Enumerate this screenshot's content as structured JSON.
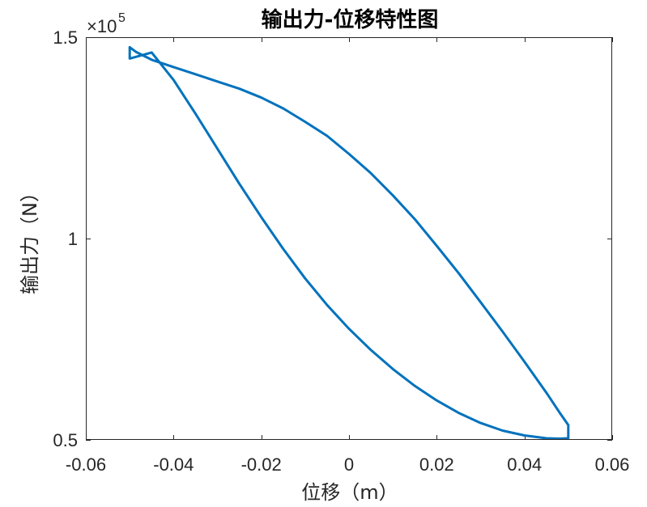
{
  "chart_data": {
    "type": "line",
    "title": "输出力-位移特性图",
    "xlabel": "位移（m）",
    "ylabel": "输出力（N）",
    "xlim": [
      -0.06,
      0.06
    ],
    "ylim": [
      50000,
      150000
    ],
    "x_ticks": [
      -0.06,
      -0.04,
      -0.02,
      0,
      0.02,
      0.04,
      0.06
    ],
    "x_tick_labels": [
      "-0.06",
      "-0.04",
      "-0.02",
      "0",
      "0.02",
      "0.04",
      "0.06"
    ],
    "y_ticks": [
      50000,
      100000,
      150000
    ],
    "y_tick_labels": [
      "0.5",
      "1",
      "1.5"
    ],
    "y_exponent": {
      "base": "×10",
      "power": "5"
    },
    "grid": false,
    "line_color": "#0072BD",
    "series": [
      {
        "x": [
          -0.05,
          -0.0485,
          -0.045,
          -0.04,
          -0.035,
          -0.03,
          -0.025,
          -0.02,
          -0.015,
          -0.01,
          -0.005,
          0,
          0.005,
          0.01,
          0.015,
          0.02,
          0.025,
          0.03,
          0.035,
          0.04,
          0.045,
          0.048,
          0.05,
          0.05,
          0.048,
          0.045,
          0.04,
          0.035,
          0.03,
          0.025,
          0.02,
          0.015,
          0.01,
          0.005,
          0,
          -0.005,
          -0.01,
          -0.015,
          -0.02,
          -0.025,
          -0.03,
          -0.035,
          -0.04,
          -0.045,
          -0.05,
          -0.05
        ],
        "y": [
          147500,
          146300,
          144400,
          142600,
          140800,
          139000,
          137200,
          135000,
          132300,
          129000,
          125500,
          121000,
          116200,
          110700,
          104800,
          98200,
          91400,
          84200,
          76900,
          69400,
          61700,
          56800,
          53700,
          50400,
          50300,
          50400,
          51100,
          52300,
          54200,
          56700,
          59800,
          63400,
          67600,
          72300,
          77600,
          83500,
          90100,
          97400,
          105300,
          113600,
          122300,
          131000,
          139400,
          146200,
          144700,
          147500
        ]
      }
    ]
  }
}
